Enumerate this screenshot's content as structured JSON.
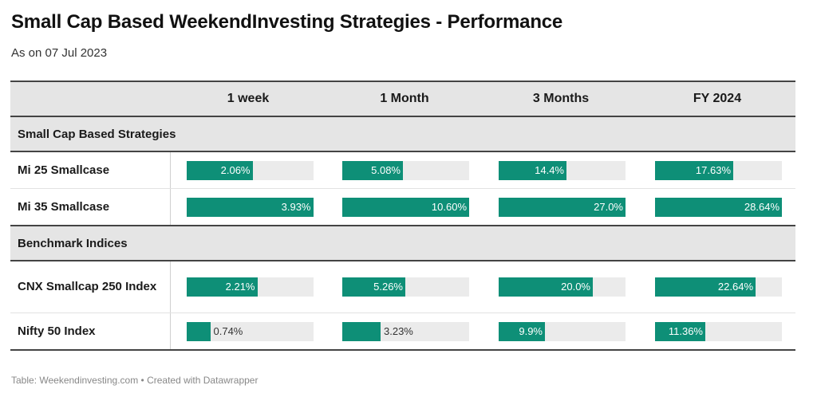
{
  "title": "Small Cap Based WeekendInvesting Strategies - Performance",
  "subtitle": "As on 07 Jul 2023",
  "footer": "Table: Weekendinvesting.com • Created with Datawrapper",
  "colors": {
    "bar": "#0e8f77",
    "track": "#ebebeb",
    "header_bg": "#e5e5e5"
  },
  "chart_data": {
    "type": "table",
    "columns": [
      "1 week",
      "1 Month",
      "3 Months",
      "FY 2024"
    ],
    "column_max": [
      3.93,
      10.6,
      27.0,
      28.64
    ],
    "groups": [
      {
        "name": "Small Cap Based Strategies",
        "rows": [
          {
            "label": "Mi 25 Smallcase",
            "values": [
              2.06,
              5.08,
              14.4,
              17.63
            ],
            "display": [
              "2.06%",
              "5.08%",
              "14.4%",
              "17.63%"
            ]
          },
          {
            "label": "Mi 35 Smallcase",
            "values": [
              3.93,
              10.6,
              27.0,
              28.64
            ],
            "display": [
              "3.93%",
              "10.60%",
              "27.0%",
              "28.64%"
            ]
          }
        ]
      },
      {
        "name": "Benchmark Indices",
        "rows": [
          {
            "label": "CNX Smallcap 250 Index",
            "values": [
              2.21,
              5.26,
              20.0,
              22.64
            ],
            "display": [
              "2.21%",
              "5.26%",
              "20.0%",
              "22.64%"
            ]
          },
          {
            "label": "Nifty 50 Index",
            "values": [
              0.74,
              3.23,
              9.9,
              11.36
            ],
            "display": [
              "0.74%",
              "3.23%",
              "9.9%",
              "11.36%"
            ]
          }
        ]
      }
    ]
  }
}
